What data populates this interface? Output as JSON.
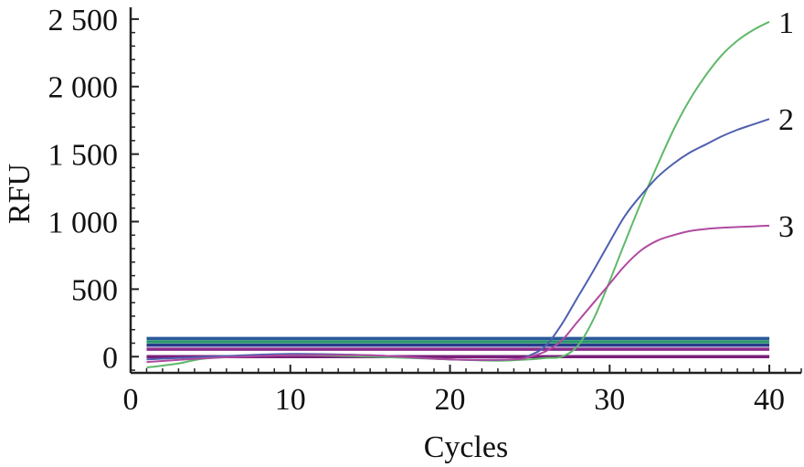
{
  "chart_data": {
    "type": "line",
    "xlabel": "Cycles",
    "ylabel": "RFU",
    "xlim": [
      0,
      42
    ],
    "ylim": [
      -120,
      2560
    ],
    "x_ticks": [
      0,
      10,
      20,
      30,
      40
    ],
    "x_tick_labels": [
      "0",
      "10",
      "20",
      "30",
      "40"
    ],
    "y_ticks": [
      0,
      500,
      1000,
      1500,
      2000,
      2500
    ],
    "y_tick_labels": [
      "0",
      "500",
      "1 000",
      "1 500",
      "2 000",
      "2 500"
    ],
    "grid": false,
    "series": [
      {
        "name": "1",
        "color": "#5fb86a",
        "x": [
          1,
          3,
          5,
          10,
          15,
          20,
          23,
          25,
          26,
          27,
          28,
          29,
          30,
          31,
          32,
          33,
          34,
          35,
          36,
          37,
          38,
          39,
          40
        ],
        "y": [
          -80,
          -50,
          -10,
          10,
          0,
          -20,
          -30,
          -20,
          -10,
          0,
          80,
          280,
          560,
          860,
          1150,
          1420,
          1680,
          1900,
          2080,
          2230,
          2340,
          2420,
          2480
        ]
      },
      {
        "name": "2",
        "color": "#4f5fb0",
        "x": [
          1,
          5,
          10,
          15,
          20,
          24,
          25,
          26,
          27,
          28,
          29,
          30,
          31,
          32,
          33,
          34,
          35,
          36,
          37,
          38,
          39,
          40
        ],
        "y": [
          -20,
          0,
          20,
          10,
          -20,
          -20,
          10,
          80,
          240,
          440,
          640,
          850,
          1050,
          1200,
          1330,
          1430,
          1510,
          1570,
          1630,
          1680,
          1720,
          1760
        ]
      },
      {
        "name": "3",
        "color": "#b04aa0",
        "x": [
          1,
          5,
          10,
          15,
          20,
          24,
          25,
          26,
          27,
          28,
          29,
          30,
          31,
          32,
          33,
          34,
          35,
          36,
          37,
          38,
          39,
          40
        ],
        "y": [
          -40,
          -10,
          10,
          10,
          -20,
          -20,
          0,
          40,
          120,
          260,
          400,
          540,
          680,
          790,
          860,
          900,
          930,
          945,
          955,
          960,
          965,
          970
        ]
      }
    ],
    "baselines": [
      {
        "y": 135,
        "color": "#2a5a9a"
      },
      {
        "y": 110,
        "color": "#27966b"
      },
      {
        "y": 85,
        "color": "#2a3c8c"
      },
      {
        "y": 55,
        "color": "#8a2a8a"
      },
      {
        "y": 0,
        "color": "#7a1f7a"
      }
    ],
    "baseline_x_range": [
      1,
      40
    ]
  }
}
